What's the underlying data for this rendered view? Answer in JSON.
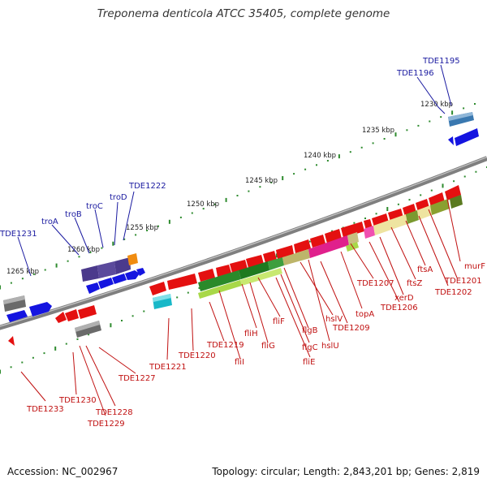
{
  "title": "Treponema denticola ATCC 35405, complete genome",
  "footer": {
    "accession": "Accession: NC_002967",
    "topology": "Topology: circular; Length: 2,843,201 bp; Genes: 2,819"
  },
  "colors": {
    "backbone": "#7a7a7a",
    "dots": "#2e8b2e",
    "forward_label": "#1a1aa0",
    "reverse_label": "#c01010",
    "reverse_strand": "#e41010",
    "forward_strand": "#1414e0",
    "flagellar": "#2a8a2a"
  },
  "scale_ticks": [
    "1230 kbp",
    "1235 kbp",
    "1240 kbp",
    "1245 kbp",
    "1250 kbp",
    "1255 kbp",
    "1260 kbp",
    "1265 kbp"
  ],
  "labels": {
    "forward": [
      "TDE1195",
      "TDE1196",
      "TDE1222",
      "troD",
      "troC",
      "troB",
      "troA",
      "TDE1231"
    ],
    "reverse": [
      "murF",
      "TDE1201",
      "ftsA",
      "TDE1202",
      "ftsZ",
      "xerD",
      "TDE1206",
      "TDE1207",
      "topA",
      "TDE1209",
      "hslU",
      "hslV",
      "flgB",
      "fliE",
      "flgC",
      "fliF",
      "fliG",
      "fliH",
      "fliI",
      "TDE1219",
      "TDE1220",
      "TDE1221",
      "TDE1227",
      "TDE1228",
      "TDE1229",
      "TDE1230",
      "TDE1233"
    ]
  }
}
